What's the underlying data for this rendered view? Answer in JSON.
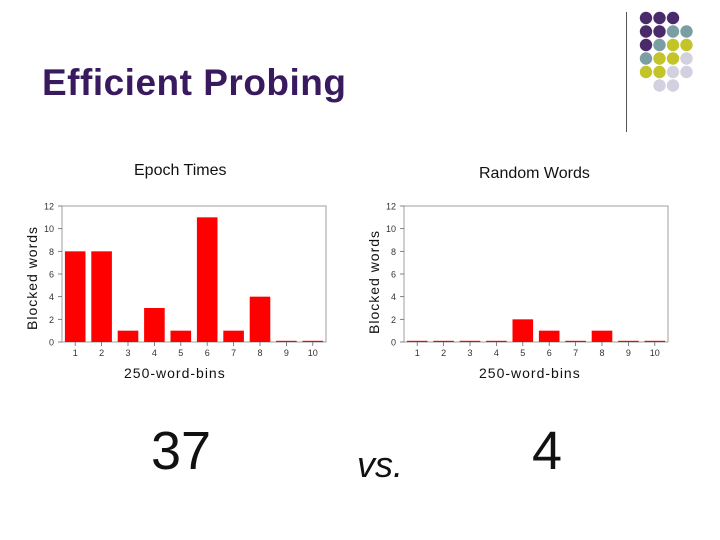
{
  "slide": {
    "title": "Efficient Probing",
    "left_total": "37",
    "vs_label": "vs.",
    "right_total": "4",
    "decor_colors": [
      "#4b2a6b",
      "#7a9ea3",
      "#c3c42a",
      "#d3d1e0"
    ]
  },
  "chart_data": [
    {
      "type": "bar",
      "title": "Epoch Times",
      "xlabel": "250-word-bins",
      "ylabel": "Blocked words",
      "categories": [
        "1",
        "2",
        "3",
        "4",
        "5",
        "6",
        "7",
        "8",
        "9",
        "10"
      ],
      "values": [
        8,
        8,
        1,
        3,
        1,
        11,
        1,
        4,
        0,
        0
      ],
      "ylim": [
        0,
        12
      ],
      "yticks": [
        0,
        2,
        4,
        6,
        8,
        10,
        12
      ],
      "bar_color": "#ff0000",
      "grid": false
    },
    {
      "type": "bar",
      "title": "Random Words",
      "xlabel": "250-word-bins",
      "ylabel": "Blocked words",
      "categories": [
        "1",
        "2",
        "3",
        "4",
        "5",
        "6",
        "7",
        "8",
        "9",
        "10"
      ],
      "values": [
        0,
        0,
        0,
        0,
        2,
        1,
        0,
        1,
        0,
        0
      ],
      "ylim": [
        0,
        12
      ],
      "yticks": [
        0,
        2,
        4,
        6,
        8,
        10,
        12
      ],
      "bar_color": "#ff0000",
      "grid": false
    }
  ]
}
